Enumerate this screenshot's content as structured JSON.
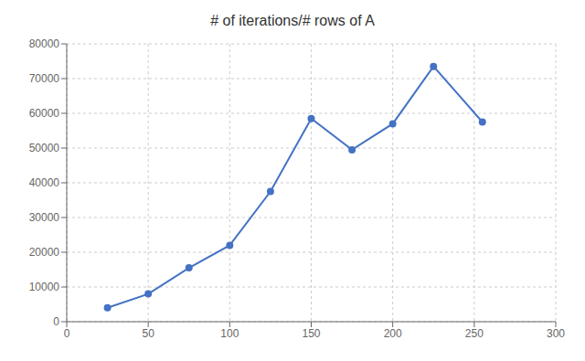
{
  "chart_data": {
    "type": "line",
    "title": "# of iterations/# rows of A",
    "x": [
      25,
      50,
      75,
      100,
      125,
      150,
      175,
      200,
      225,
      255
    ],
    "values": [
      4000,
      8000,
      15500,
      22000,
      37500,
      58500,
      49500,
      57000,
      73500,
      57500
    ],
    "color": "#4472c4",
    "marker": "circle",
    "xlim": [
      0,
      300
    ],
    "ylim": [
      0,
      80000
    ],
    "xticks": [
      0,
      50,
      100,
      150,
      200,
      250,
      300
    ],
    "yticks": [
      0,
      10000,
      20000,
      30000,
      40000,
      50000,
      60000,
      70000,
      80000
    ],
    "grid": true
  }
}
